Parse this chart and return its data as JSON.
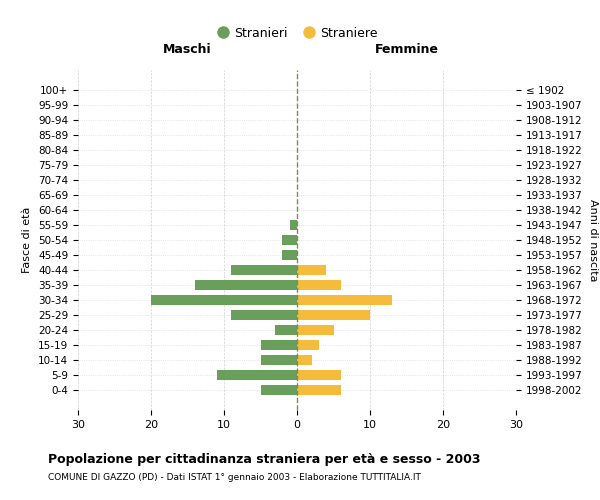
{
  "age_groups": [
    "0-4",
    "5-9",
    "10-14",
    "15-19",
    "20-24",
    "25-29",
    "30-34",
    "35-39",
    "40-44",
    "45-49",
    "50-54",
    "55-59",
    "60-64",
    "65-69",
    "70-74",
    "75-79",
    "80-84",
    "85-89",
    "90-94",
    "95-99",
    "100+"
  ],
  "birth_years": [
    "1998-2002",
    "1993-1997",
    "1988-1992",
    "1983-1987",
    "1978-1982",
    "1973-1977",
    "1968-1972",
    "1963-1967",
    "1958-1962",
    "1953-1957",
    "1948-1952",
    "1943-1947",
    "1938-1942",
    "1933-1937",
    "1928-1932",
    "1923-1927",
    "1918-1922",
    "1913-1917",
    "1908-1912",
    "1903-1907",
    "≤ 1902"
  ],
  "males": [
    5,
    11,
    5,
    5,
    3,
    9,
    20,
    14,
    9,
    2,
    2,
    1,
    0,
    0,
    0,
    0,
    0,
    0,
    0,
    0,
    0
  ],
  "females": [
    6,
    6,
    2,
    3,
    5,
    10,
    13,
    6,
    4,
    0,
    0,
    0,
    0,
    0,
    0,
    0,
    0,
    0,
    0,
    0,
    0
  ],
  "male_color": "#6a9e5b",
  "female_color": "#f5bb3a",
  "title": "Popolazione per cittadinanza straniera per età e sesso - 2003",
  "subtitle": "COMUNE DI GAZZO (PD) - Dati ISTAT 1° gennaio 2003 - Elaborazione TUTTITALIA.IT",
  "xlabel_left": "Maschi",
  "xlabel_right": "Femmine",
  "ylabel_left": "Fasce di età",
  "ylabel_right": "Anni di nascita",
  "legend_male": "Stranieri",
  "legend_female": "Straniere",
  "xlim": 30,
  "background_color": "#ffffff",
  "grid_color": "#cccccc"
}
